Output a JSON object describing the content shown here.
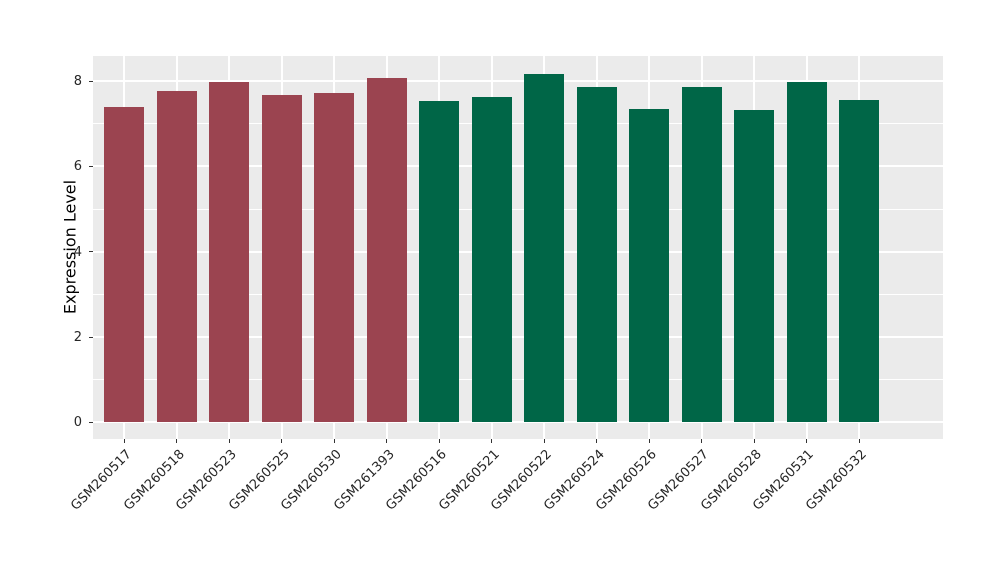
{
  "figure": {
    "background": "#FFFFFF",
    "panel_background": "#EBEBEB",
    "gridline_color": "#FFFFFF",
    "axis_text_color": "#262626",
    "tick_mark_color": "#333333"
  },
  "chart_data": {
    "type": "bar",
    "title": "",
    "xlabel": "",
    "ylabel": "Expression Level",
    "categories": [
      "GSM260517",
      "GSM260518",
      "GSM260523",
      "GSM260525",
      "GSM260530",
      "GSM261393",
      "GSM260516",
      "GSM260521",
      "GSM260522",
      "GSM260524",
      "GSM260526",
      "GSM260527",
      "GSM260528",
      "GSM260531",
      "GSM260532"
    ],
    "values": [
      7.39,
      7.76,
      7.97,
      7.68,
      7.73,
      8.08,
      7.53,
      7.63,
      8.17,
      7.86,
      7.34,
      7.87,
      7.32,
      7.99,
      7.57
    ],
    "bar_colors": [
      "#9B4450",
      "#9B4450",
      "#9B4450",
      "#9B4450",
      "#9B4450",
      "#9B4450",
      "#006647",
      "#006647",
      "#006647",
      "#006647",
      "#006647",
      "#006647",
      "#006647",
      "#006647",
      "#006647"
    ],
    "palette": {
      "maroon": "#9B4450",
      "green": "#006647"
    },
    "group_counts": {
      "maroon_bars": 6,
      "green_bars": 9
    },
    "y_ticks": [
      0,
      2,
      4,
      6,
      8
    ],
    "y_tick_labels": [
      "0",
      "2",
      "4",
      "6",
      "8"
    ],
    "y_minor_ticks": [
      1,
      3,
      5,
      7
    ],
    "ylim": [
      -0.39,
      8.59
    ],
    "x_label_angle_deg": 45,
    "grid": true,
    "legend_position": "none"
  }
}
